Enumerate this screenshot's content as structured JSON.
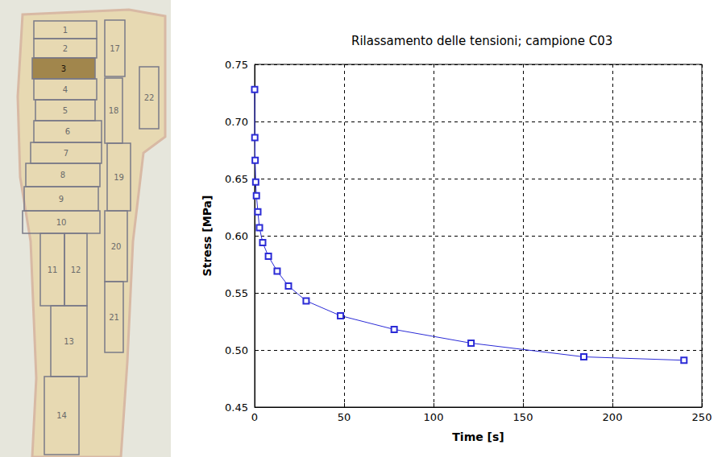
{
  "chart_data": {
    "type": "line",
    "title": "Rilassamento delle tensioni; campione C03",
    "x_label": "Time [s]",
    "y_label": "Stress [MPa]",
    "x": [
      0,
      0.1,
      0.3,
      0.6,
      1,
      1.8,
      2.7,
      4.5,
      7.7,
      12.6,
      18.9,
      28.8,
      48,
      78,
      121,
      184,
      240
    ],
    "series": [
      {
        "name": "C03",
        "color": "#2b2bd6",
        "marker": "square",
        "line_style": "solid",
        "values": [
          0.728,
          0.686,
          0.666,
          0.647,
          0.635,
          0.621,
          0.607,
          0.594,
          0.582,
          0.569,
          0.556,
          0.543,
          0.53,
          0.518,
          0.506,
          0.494,
          0.491
        ]
      }
    ],
    "xlim": [
      0,
      250
    ],
    "xticks": [
      0,
      50,
      100,
      150,
      200,
      250
    ],
    "ylim": [
      0.45,
      0.75
    ],
    "yticks": [
      0.45,
      {
        "value": 0.5,
        "label": "0.50"
      },
      0.55,
      {
        "value": 0.6,
        "label": "0.60"
      },
      0.65,
      {
        "value": 0.7,
        "label": "0.70"
      },
      0.75
    ],
    "grid": true
  },
  "specimen": {
    "labels": [
      "1",
      "2",
      "3",
      "4",
      "5",
      "6",
      "7",
      "8",
      "9",
      "10",
      "11",
      "12",
      "13",
      "14",
      "17",
      "18",
      "19",
      "20",
      "21",
      "22"
    ],
    "highlighted": "3"
  }
}
